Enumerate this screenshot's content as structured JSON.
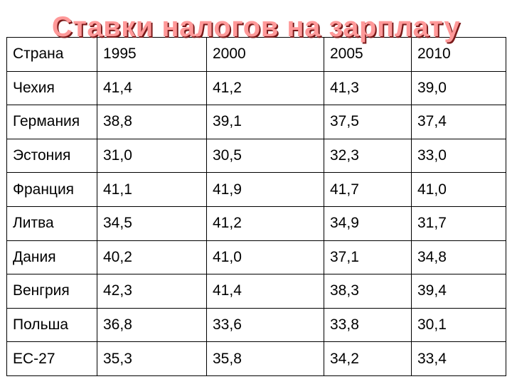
{
  "title": "Ставки налогов на зарплату",
  "table": {
    "headers": [
      "Страна",
      "1995",
      "2000",
      "2005",
      "2010"
    ],
    "rows": [
      [
        "Чехия",
        "41,4",
        "41,2",
        "41,3",
        "39,0"
      ],
      [
        "Германия",
        "38,8",
        "39,1",
        "37,5",
        "37,4"
      ],
      [
        "Эстония",
        "31,0",
        "30,5",
        "32,3",
        "33,0"
      ],
      [
        "Франция",
        "41,1",
        "41,9",
        "41,7",
        "41,0"
      ],
      [
        "Литва",
        "34,5",
        "41,2",
        "34,9",
        "31,7"
      ],
      [
        "Дания",
        "40,2",
        "41,0",
        "37,1",
        "34,8"
      ],
      [
        "Венгрия",
        "42,3",
        "41,4",
        "38,3",
        "39,4"
      ],
      [
        "Польша",
        "36,8",
        "33,6",
        "33,8",
        "30,1"
      ],
      [
        "ЕС-27",
        "35,3",
        "35,8",
        "34,2",
        "33,4"
      ]
    ]
  }
}
